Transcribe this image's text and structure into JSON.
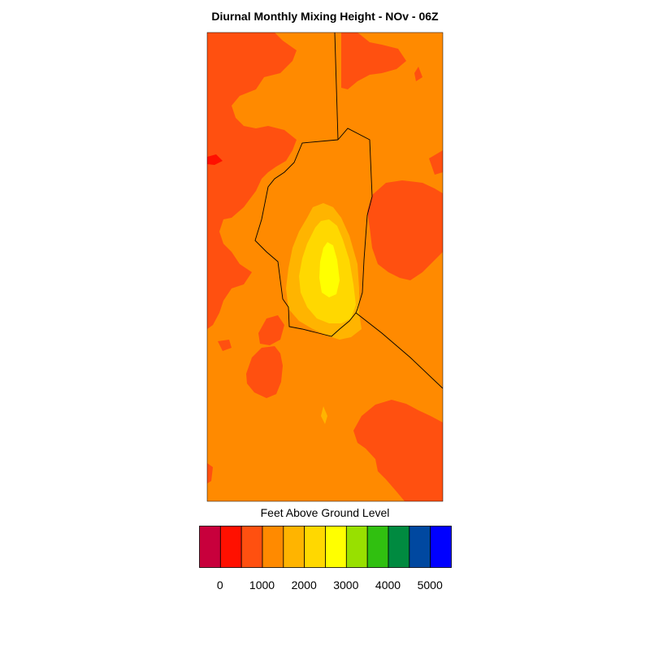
{
  "title": "Diurnal Monthly Mixing Height - NOv - 06Z",
  "colorbar": {
    "label": "Feet Above Ground Level",
    "colors": [
      "#c8003c",
      "#ff1000",
      "#ff5010",
      "#ff8a00",
      "#ffb400",
      "#ffd800",
      "#ffff00",
      "#98e000",
      "#30c010",
      "#008a40",
      "#0048a0",
      "#0000ff"
    ],
    "ticks": [
      "0",
      "1000",
      "2000",
      "3000",
      "4000",
      "5000"
    ]
  },
  "map_colors": {
    "dark_orange": "#ff5010",
    "orange": "#ff8a00",
    "amber": "#ffb400",
    "gold": "#ffd800",
    "yellow": "#ffff00",
    "red": "#ff1000",
    "boundary": "#000000"
  }
}
